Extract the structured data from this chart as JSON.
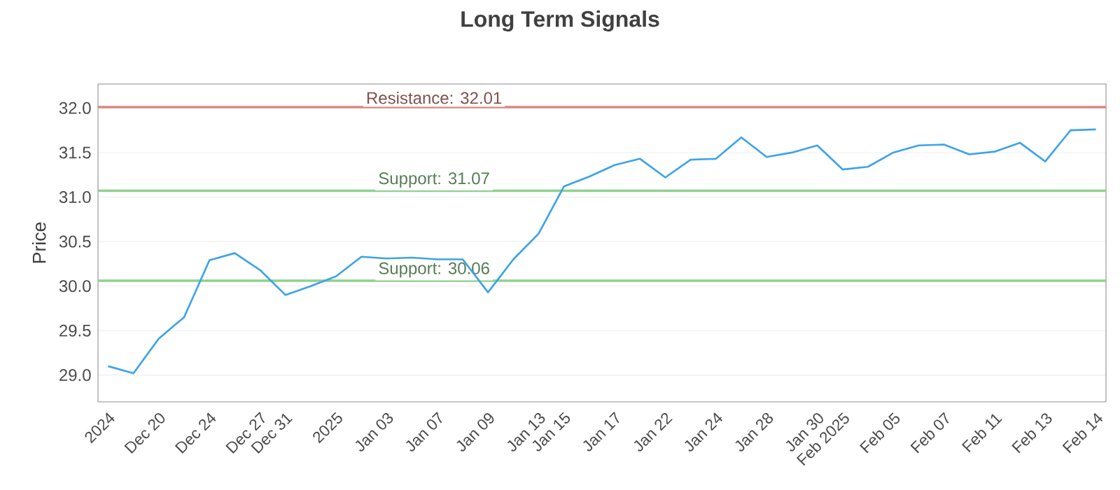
{
  "chart_data": {
    "type": "line",
    "title": "Long Term Signals",
    "ylabel": "Price",
    "categories": [
      "2024",
      null,
      "Dec 20",
      null,
      "Dec 24",
      null,
      "Dec 27",
      "Dec 31",
      null,
      "2025",
      null,
      "Jan 03",
      null,
      "Jan 07",
      null,
      "Jan 09",
      null,
      "Jan 13",
      "Jan 15",
      null,
      "Jan 17",
      null,
      "Jan 22",
      null,
      "Jan 24",
      null,
      "Jan 28",
      null,
      "Jan 30",
      "Feb 2025",
      null,
      "Feb 05",
      null,
      "Feb 07",
      null,
      "Feb 11",
      null,
      "Feb 13",
      null,
      "Feb 14"
    ],
    "series": [
      {
        "color": "#3ea3e8",
        "values": [
          29.1,
          29.02,
          29.41,
          29.65,
          30.29,
          30.37,
          30.18,
          29.9,
          30.0,
          30.11,
          30.33,
          30.31,
          30.32,
          30.3,
          30.3,
          29.93,
          30.3,
          30.59,
          31.12,
          31.23,
          31.36,
          31.43,
          31.22,
          31.42,
          31.43,
          31.67,
          31.45,
          31.5,
          31.58,
          31.31,
          31.34,
          31.5,
          31.58,
          31.59,
          31.48,
          31.51,
          31.61,
          31.4,
          31.75,
          31.76
        ]
      }
    ],
    "ylim": [
      28.7,
      32.27
    ],
    "yticks": [
      {
        "value": 29,
        "label": "29.0"
      },
      {
        "value": 29.5,
        "label": "29.5"
      },
      {
        "value": 30,
        "label": "30.0"
      },
      {
        "value": 30.5,
        "label": "30.5"
      },
      {
        "value": 31,
        "label": "31.0"
      },
      {
        "value": 31.5,
        "label": "31.5"
      },
      {
        "value": 32,
        "label": "32.0"
      }
    ],
    "grid": "y",
    "ref_lines": [
      {
        "axis": "y",
        "value": 32.01,
        "label": "Resistance: 32.01",
        "color": "#d98880"
      },
      {
        "axis": "y",
        "value": 31.07,
        "label": "Support: 31.07",
        "color": "#8fd18f"
      },
      {
        "axis": "y",
        "value": 30.06,
        "label": "Support: 30.06",
        "color": "#8fd18f"
      }
    ]
  }
}
